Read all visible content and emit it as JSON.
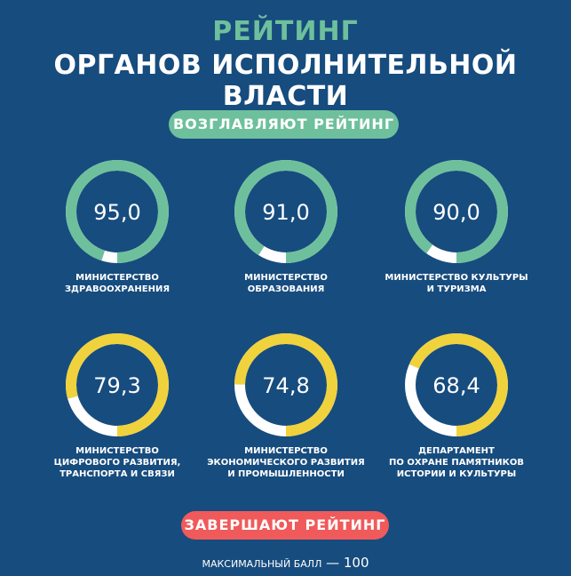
{
  "header": {
    "title_line1": "РЕЙТИНГ",
    "title_line2": "ОРГАНОВ ИСПОЛНИТЕЛЬНОЙ ВЛАСТИ"
  },
  "sections": {
    "top_label": "ВОЗГЛАВЛЯЮТ РЕЙТИНГ",
    "bottom_label": "ЗАВЕРШАЮТ РЕЙТИНГ"
  },
  "footnote": {
    "text": "МАКСИМАЛЬНЫЙ БАЛЛ",
    "dash": " — ",
    "value": "100"
  },
  "colors": {
    "background": "#174c7e",
    "top_ring": "#6ec09c",
    "bottom_ring": "#f0d23c",
    "track": "#ffffff",
    "bottom_pill": "#f05a5a"
  },
  "chart_data": {
    "type": "donut-gauges",
    "max": 100,
    "items": [
      {
        "value": 95.0,
        "display": "95,0",
        "lines": [
          "МИНИСТЕРСТВО",
          "ЗДРАВООХРАНЕНИЯ"
        ],
        "group": "top"
      },
      {
        "value": 91.0,
        "display": "91,0",
        "lines": [
          "МИНИСТЕРСТВО",
          "ОБРАЗОВАНИЯ"
        ],
        "group": "top"
      },
      {
        "value": 90.0,
        "display": "90,0",
        "lines": [
          "МИНИСТЕРСТВО КУЛЬТУРЫ",
          "И ТУРИЗМА"
        ],
        "group": "top"
      },
      {
        "value": 79.3,
        "display": "79,3",
        "lines": [
          "МИНИСТЕРСТВО",
          "ЦИФРОВОГО РАЗВИТИЯ,",
          "ТРАНСПОРТА И СВЯЗИ"
        ],
        "group": "bottom"
      },
      {
        "value": 74.8,
        "display": "74,8",
        "lines": [
          "МИНИСТЕРСТВО",
          "ЭКОНОМИЧЕСКОГО РАЗВИТИЯ",
          "И ПРОМЫШЛЕННОСТИ"
        ],
        "group": "bottom"
      },
      {
        "value": 68.4,
        "display": "68,4",
        "lines": [
          "ДЕПАРТАМЕНТ",
          "ПО ОХРАНЕ ПАМЯТНИКОВ",
          "ИСТОРИИ И КУЛЬТУРЫ"
        ],
        "group": "bottom"
      }
    ]
  }
}
